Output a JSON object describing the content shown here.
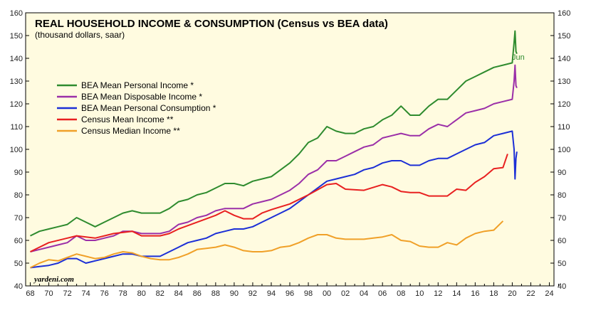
{
  "chart_data": {
    "type": "line",
    "title": "REAL HOUSEHOLD INCOME & CONSUMPTION (Census vs BEA data)",
    "subtitle": "(thousand dollars, saar)",
    "watermark": "yardeni.com",
    "annotation": "Jun",
    "xlim": [
      1967.5,
      2024.5
    ],
    "ylim": [
      40,
      160
    ],
    "x_ticks": [
      1968,
      1970,
      1972,
      1974,
      1976,
      1978,
      1980,
      1982,
      1984,
      1986,
      1988,
      1990,
      1992,
      1994,
      1996,
      1998,
      2000,
      2002,
      2004,
      2006,
      2008,
      2010,
      2012,
      2014,
      2016,
      2018,
      2020,
      2022,
      2024
    ],
    "x_tick_labels": [
      "68",
      "70",
      "72",
      "74",
      "76",
      "78",
      "80",
      "82",
      "84",
      "86",
      "88",
      "90",
      "92",
      "94",
      "96",
      "98",
      "00",
      "02",
      "04",
      "06",
      "08",
      "10",
      "12",
      "14",
      "16",
      "18",
      "20",
      "22",
      "24"
    ],
    "y_ticks": [
      40,
      50,
      60,
      70,
      80,
      90,
      100,
      110,
      120,
      130,
      140,
      150,
      160
    ],
    "y_tick_labels": [
      "40",
      "50",
      "60",
      "70",
      "80",
      "90",
      "100",
      "110",
      "120",
      "130",
      "140",
      "150",
      "160"
    ],
    "grid": false,
    "legend_position": "upper-left",
    "background_color": "#fffbe0",
    "series": [
      {
        "name": "BEA Mean Personal Income *",
        "color": "#2e8b2e",
        "x": [
          1968,
          1969,
          1970,
          1971,
          1972,
          1973,
          1974,
          1975,
          1976,
          1977,
          1978,
          1979,
          1980,
          1981,
          1982,
          1983,
          1984,
          1985,
          1986,
          1987,
          1988,
          1989,
          1990,
          1991,
          1992,
          1993,
          1994,
          1995,
          1996,
          1997,
          1998,
          1999,
          2000,
          2001,
          2002,
          2003,
          2004,
          2005,
          2006,
          2007,
          2008,
          2009,
          2010,
          2011,
          2012,
          2013,
          2014,
          2015,
          2016,
          2017,
          2018,
          2019,
          2020.0,
          2020.2,
          2020.3,
          2020.4,
          2020.5
        ],
        "values": [
          62,
          64,
          65,
          66,
          67,
          70,
          68,
          66,
          68,
          70,
          72,
          73,
          72,
          72,
          72,
          74,
          77,
          78,
          80,
          81,
          83,
          85,
          85,
          84,
          86,
          87,
          88,
          91,
          94,
          98,
          103,
          105,
          110,
          108,
          107,
          107,
          109,
          110,
          113,
          115,
          119,
          115,
          115,
          119,
          122,
          122,
          126,
          130,
          132,
          134,
          136,
          137,
          138,
          147,
          152,
          143,
          142
        ]
      },
      {
        "name": "BEA Mean Disposable Income *",
        "color": "#9b2fa8",
        "x": [
          1968,
          1969,
          1970,
          1971,
          1972,
          1973,
          1974,
          1975,
          1976,
          1977,
          1978,
          1979,
          1980,
          1981,
          1982,
          1983,
          1984,
          1985,
          1986,
          1987,
          1988,
          1989,
          1990,
          1991,
          1992,
          1993,
          1994,
          1995,
          1996,
          1997,
          1998,
          1999,
          2000,
          2001,
          2002,
          2003,
          2004,
          2005,
          2006,
          2007,
          2008,
          2009,
          2010,
          2011,
          2012,
          2013,
          2014,
          2015,
          2016,
          2017,
          2018,
          2019,
          2020.0,
          2020.2,
          2020.3,
          2020.4,
          2020.5
        ],
        "values": [
          55,
          56,
          57,
          58,
          59,
          62,
          60,
          60,
          61,
          62,
          64,
          64,
          63,
          63,
          63,
          64,
          67,
          68,
          70,
          71,
          73,
          74,
          74,
          74,
          76,
          77,
          78,
          80,
          82,
          85,
          89,
          91,
          95,
          95,
          97,
          99,
          101,
          102,
          105,
          106,
          107,
          106,
          106,
          109,
          111,
          110,
          113,
          116,
          117,
          118,
          120,
          121,
          122,
          130,
          137,
          128,
          127
        ]
      },
      {
        "name": "BEA Mean Personal Consumption *",
        "color": "#1c2fd6",
        "x": [
          1968,
          1969,
          1970,
          1971,
          1972,
          1973,
          1974,
          1975,
          1976,
          1977,
          1978,
          1979,
          1980,
          1981,
          1982,
          1983,
          1984,
          1985,
          1986,
          1987,
          1988,
          1989,
          1990,
          1991,
          1992,
          1993,
          1994,
          1995,
          1996,
          1997,
          1998,
          1999,
          2000,
          2001,
          2002,
          2003,
          2004,
          2005,
          2006,
          2007,
          2008,
          2009,
          2010,
          2011,
          2012,
          2013,
          2014,
          2015,
          2016,
          2017,
          2018,
          2019,
          2020.0,
          2020.2,
          2020.3,
          2020.4,
          2020.5
        ],
        "values": [
          48,
          48.5,
          49,
          50,
          52,
          52,
          50,
          51,
          52,
          53,
          54,
          54,
          53,
          53,
          53,
          55,
          57,
          59,
          60,
          61,
          63,
          64,
          65,
          65,
          66,
          68,
          70,
          72,
          74,
          77,
          80,
          83,
          86,
          87,
          88,
          89,
          91,
          92,
          94,
          95,
          95,
          93,
          93,
          95,
          96,
          96,
          98,
          100,
          102,
          103,
          106,
          107,
          108,
          100,
          87,
          96,
          99
        ]
      },
      {
        "name": "Census Mean Income **",
        "color": "#e82020",
        "x": [
          1968,
          1970,
          1972,
          1973,
          1975,
          1977,
          1979,
          1980,
          1982,
          1983,
          1984,
          1986,
          1988,
          1989,
          1990,
          1991,
          1992,
          1993,
          1994,
          1996,
          1998,
          2000,
          2001,
          2002,
          2004,
          2006,
          2007,
          2008,
          2009,
          2010,
          2011,
          2012,
          2013,
          2014,
          2015,
          2016,
          2017,
          2018,
          2019,
          2019.5
        ],
        "values": [
          55,
          59,
          61,
          62,
          61,
          63,
          64,
          62,
          62,
          63,
          65,
          68,
          71,
          73,
          71,
          69.5,
          69.5,
          72,
          73.5,
          76,
          80,
          84.5,
          85,
          82.5,
          82,
          84.5,
          83.5,
          81.5,
          81,
          81,
          79.5,
          79.5,
          79.5,
          82.5,
          82,
          85.5,
          88,
          91.5,
          92,
          98
        ]
      },
      {
        "name": "Census Median Income **",
        "color": "#f0a028",
        "x": [
          1968,
          1969,
          1970,
          1971,
          1972,
          1973,
          1974,
          1975,
          1976,
          1977,
          1978,
          1979,
          1980,
          1981,
          1982,
          1983,
          1984,
          1985,
          1986,
          1987,
          1988,
          1989,
          1990,
          1991,
          1992,
          1993,
          1994,
          1995,
          1996,
          1997,
          1998,
          1999,
          2000,
          2001,
          2002,
          2003,
          2004,
          2005,
          2006,
          2007,
          2008,
          2009,
          2010,
          2011,
          2012,
          2013,
          2014,
          2015,
          2016,
          2017,
          2018,
          2019
        ],
        "values": [
          48,
          50,
          51.5,
          51,
          52.5,
          54,
          53,
          52,
          52.5,
          54,
          55,
          54.5,
          53,
          52,
          51.5,
          51.5,
          52.5,
          54,
          56,
          56.5,
          57,
          58,
          57,
          55.5,
          55,
          55,
          55.5,
          57,
          57.5,
          59,
          61,
          62.5,
          62.5,
          61,
          60.5,
          60.5,
          60.5,
          61,
          61.5,
          62.5,
          60,
          59.5,
          57.5,
          57,
          57,
          59,
          58,
          61,
          63,
          64,
          64.5,
          68.5
        ]
      }
    ]
  }
}
